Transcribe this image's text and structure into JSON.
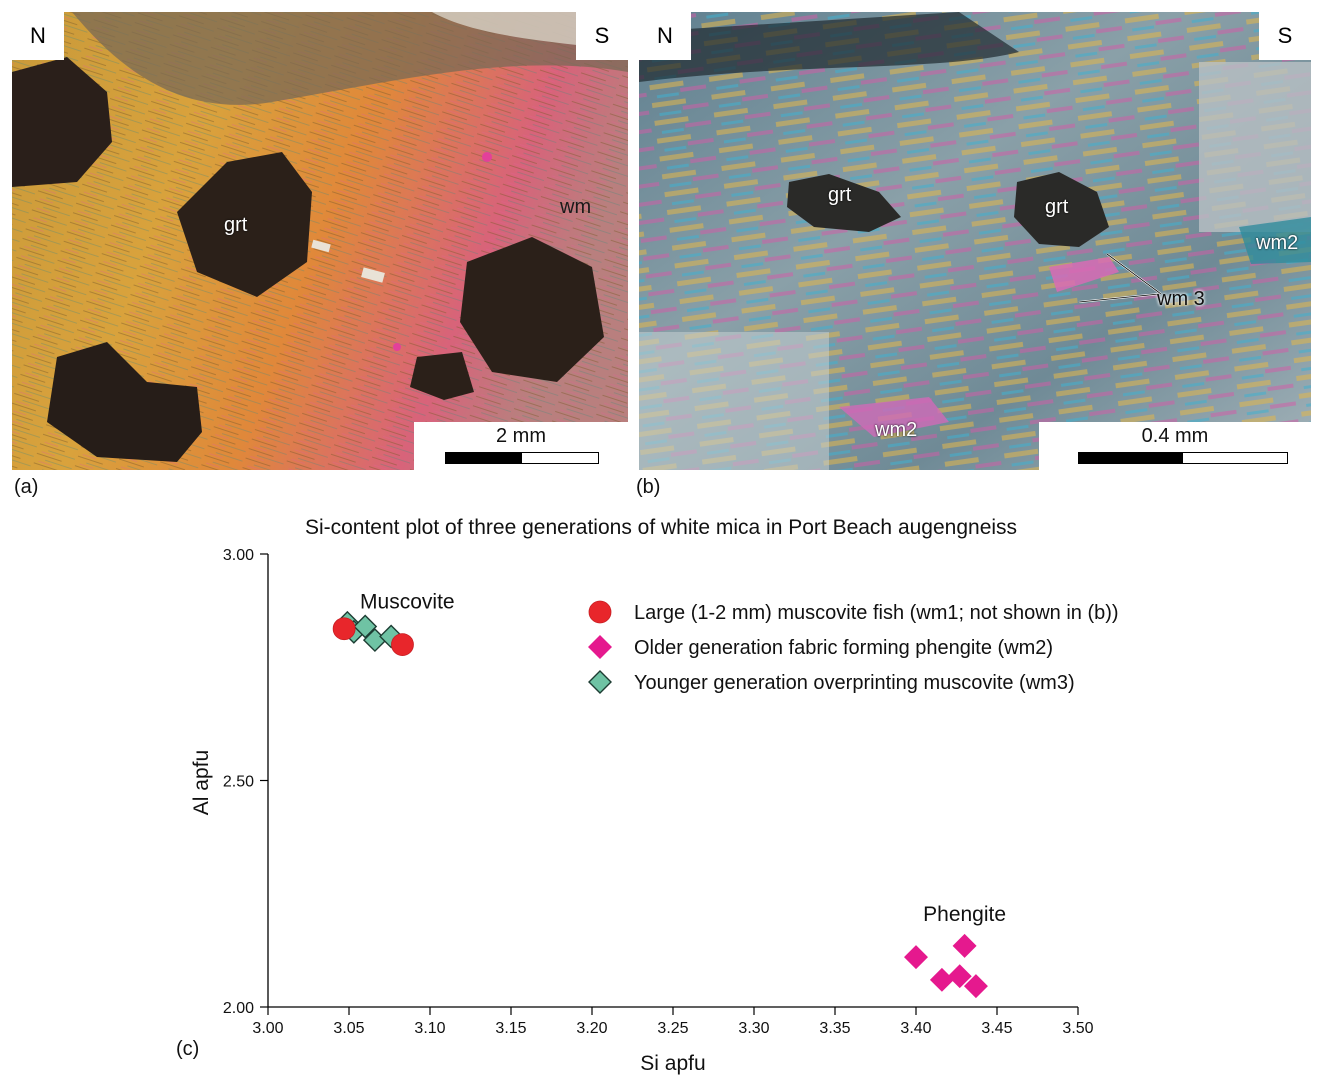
{
  "panels": {
    "a": {
      "letter": "(a)",
      "left_dir": "N",
      "right_dir": "S",
      "labels": {
        "grt": "grt",
        "wm": "wm"
      },
      "scale": "2 mm"
    },
    "b": {
      "letter": "(b)",
      "left_dir": "N",
      "right_dir": "S",
      "labels": {
        "grt1": "grt",
        "grt2": "grt",
        "wm2_right": "wm2",
        "wm3": "wm 3",
        "wm2_bottom": "wm2"
      },
      "scale": "0.4 mm"
    },
    "c": {
      "letter": "(c)"
    }
  },
  "chart_data": {
    "type": "scatter",
    "title": "Si-content plot of three generations of white mica in Port Beach augengneiss",
    "xlabel": "Si apfu",
    "ylabel": "Al apfu",
    "xlim": [
      3.0,
      3.5
    ],
    "ylim": [
      2.0,
      3.0
    ],
    "xticks": [
      "3.00",
      "3.05",
      "3.10",
      "3.15",
      "3.20",
      "3.25",
      "3.30",
      "3.35",
      "3.40",
      "3.45",
      "3.50"
    ],
    "yticks": [
      "2.00",
      "2.50",
      "3.00"
    ],
    "annotations": [
      {
        "text": "Muscovite",
        "x": 3.086,
        "y": 2.88
      },
      {
        "text": "Phengite",
        "x": 3.43,
        "y": 2.19
      }
    ],
    "series": [
      {
        "name": "Large (1-2 mm) muscovite fish (wm1; not shown in (b))",
        "marker": "circle",
        "color": "#e8262b",
        "points": [
          [
            3.047,
            2.835
          ],
          [
            3.083,
            2.8
          ]
        ]
      },
      {
        "name": "Older generation fabric forming phengite (wm2)",
        "marker": "diamond",
        "color": "#e5198e",
        "points": [
          [
            3.4,
            2.11
          ],
          [
            3.43,
            2.135
          ],
          [
            3.416,
            2.06
          ],
          [
            3.427,
            2.068
          ],
          [
            3.437,
            2.046
          ]
        ]
      },
      {
        "name": "Younger generation overprinting muscovite (wm3)",
        "marker": "diamond",
        "color": "#6fc3a4",
        "points": [
          [
            3.049,
            2.848
          ],
          [
            3.053,
            2.828
          ],
          [
            3.06,
            2.84
          ],
          [
            3.066,
            2.81
          ],
          [
            3.076,
            2.818
          ]
        ]
      }
    ]
  }
}
